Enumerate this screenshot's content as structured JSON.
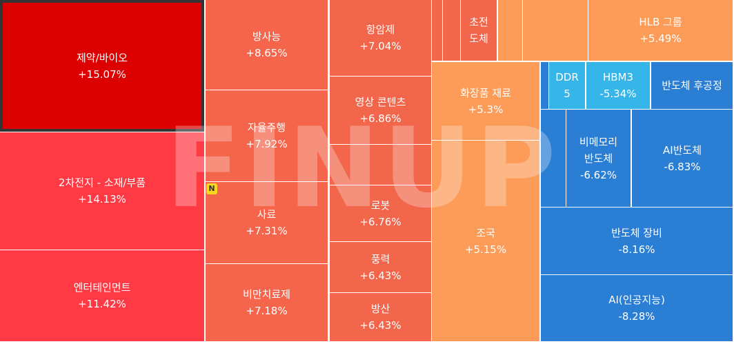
{
  "chart_data": {
    "type": "treemap",
    "watermark": "FINUP",
    "badge": "N",
    "items": [
      {
        "name": "제약/바이오",
        "values": 15.07,
        "value_labels": "+15.07%",
        "color": "#dd0000"
      },
      {
        "name": "2차전지 - 소재/부품",
        "values": 14.13,
        "value_labels": "+14.13%",
        "color": "#ff3a44"
      },
      {
        "name": "엔터테인먼트",
        "values": 11.42,
        "value_labels": "+11.42%",
        "color": "#ff3a44"
      },
      {
        "name": "방사능",
        "values": 8.65,
        "value_labels": "+8.65%",
        "color": "#f4654c"
      },
      {
        "name": "자율주행",
        "values": 7.92,
        "value_labels": "+7.92%",
        "color": "#f4654c"
      },
      {
        "name": "사료",
        "values": 7.31,
        "value_labels": "+7.31%",
        "color": "#f4654c"
      },
      {
        "name": "비만치료제",
        "values": 7.18,
        "value_labels": "+7.18%",
        "color": "#f4654c"
      },
      {
        "name": "항암제",
        "values": 7.04,
        "value_labels": "+7.04%",
        "color": "#f2664c"
      },
      {
        "name": "영상 콘텐츠",
        "values": 6.86,
        "value_labels": "+6.86%",
        "color": "#f2664c"
      },
      {
        "name": "로봇",
        "values": 6.76,
        "value_labels": "+6.76%",
        "color": "#f2664c"
      },
      {
        "name": "풍력",
        "values": 6.43,
        "value_labels": "+6.43%",
        "color": "#f2664c"
      },
      {
        "name": "방산",
        "values": 6.43,
        "value_labels": "+6.43%",
        "color": "#f2664c"
      },
      {
        "name": "초전도체",
        "values": null,
        "value_labels": null,
        "color": "#f2664c"
      },
      {
        "name": "HLB 그룹",
        "values": 5.49,
        "value_labels": "+5.49%",
        "color": "#fd9c59"
      },
      {
        "name": "화장품 재료",
        "values": 5.3,
        "value_labels": "+5.3%",
        "color": "#fd9c59"
      },
      {
        "name": "조국",
        "values": 5.15,
        "value_labels": "+5.15%",
        "color": "#fd9c59"
      },
      {
        "name": "DDR5",
        "values": null,
        "value_labels": null,
        "color": "#36b5e8"
      },
      {
        "name": "HBM3",
        "values": -5.34,
        "value_labels": "-5.34%",
        "color": "#36b5e8"
      },
      {
        "name": "반도체 후공정",
        "values": null,
        "value_labels": null,
        "color": "#2a7fd4"
      },
      {
        "name": "비메모리 반도체",
        "values": -6.62,
        "value_labels": "-6.62%",
        "color": "#2a7fd4"
      },
      {
        "name": "AI반도체",
        "values": -6.83,
        "value_labels": "-6.83%",
        "color": "#2a7fd4"
      },
      {
        "name": "반도체 장비",
        "values": -8.16,
        "value_labels": "-8.16%",
        "color": "#2a7fd4"
      },
      {
        "name": "AI(인공지능)",
        "values": -8.28,
        "value_labels": "-8.28%",
        "color": "#2a7fd4"
      }
    ]
  }
}
